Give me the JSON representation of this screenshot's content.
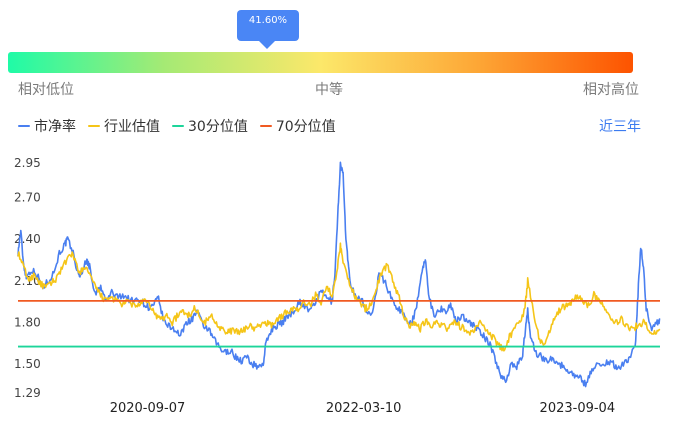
{
  "gauge": {
    "percentile": 0.416,
    "percentile_label": "41.60%",
    "labels": {
      "low": "相对低位",
      "mid": "中等",
      "high": "相对高位"
    }
  },
  "legend": [
    {
      "name": "市净率",
      "color": "#4a7ff0"
    },
    {
      "name": "行业估值",
      "color": "#f5c518"
    },
    {
      "name": "30分位值",
      "color": "#1dd59a"
    },
    {
      "name": "70分位值",
      "color": "#f05a22"
    }
  ],
  "range_button": "近三年",
  "chart_data": {
    "type": "line",
    "y_ticks": [
      "2.95",
      "2.70",
      "2.40",
      "2.10",
      "1.80",
      "1.50",
      "1.29"
    ],
    "ylim": [
      1.29,
      2.95
    ],
    "x_ticks": [
      "2020-09-07",
      "2022-03-10",
      "2023-09-04"
    ],
    "xlim": [
      "2019-10-14",
      "2024-04-01"
    ],
    "series": [
      {
        "name": "市净率",
        "color": "#4a7ff0",
        "points": [
          [
            "2019-10-14",
            2.3
          ],
          [
            "2019-10-21",
            2.46
          ],
          [
            "2019-10-28",
            2.22
          ],
          [
            "2019-11-04",
            2.13
          ],
          [
            "2019-11-18",
            2.18
          ],
          [
            "2019-12-02",
            2.14
          ],
          [
            "2019-12-16",
            2.05
          ],
          [
            "2019-12-30",
            2.1
          ],
          [
            "2020-01-13",
            2.16
          ],
          [
            "2020-01-27",
            2.3
          ],
          [
            "2020-02-10",
            2.36
          ],
          [
            "2020-02-17",
            2.4
          ],
          [
            "2020-03-02",
            2.3
          ],
          [
            "2020-03-16",
            2.13
          ],
          [
            "2020-03-23",
            2.16
          ],
          [
            "2020-04-06",
            2.25
          ],
          [
            "2020-04-13",
            2.2
          ],
          [
            "2020-04-27",
            2.0
          ],
          [
            "2020-05-11",
            2.05
          ],
          [
            "2020-05-25",
            1.95
          ],
          [
            "2020-06-08",
            2.02
          ],
          [
            "2020-06-22",
            1.98
          ],
          [
            "2020-07-06",
            2.0
          ],
          [
            "2020-07-20",
            1.97
          ],
          [
            "2020-08-03",
            1.95
          ],
          [
            "2020-08-17",
            1.97
          ],
          [
            "2020-08-31",
            1.93
          ],
          [
            "2020-09-14",
            1.9
          ],
          [
            "2020-09-28",
            1.95
          ],
          [
            "2020-10-05",
            1.97
          ],
          [
            "2020-10-19",
            1.8
          ],
          [
            "2020-11-02",
            1.77
          ],
          [
            "2020-11-16",
            1.75
          ],
          [
            "2020-11-30",
            1.7
          ],
          [
            "2020-12-14",
            1.8
          ],
          [
            "2020-12-28",
            1.82
          ],
          [
            "2021-01-11",
            1.88
          ],
          [
            "2021-01-25",
            1.78
          ],
          [
            "2021-02-08",
            1.75
          ],
          [
            "2021-02-22",
            1.68
          ],
          [
            "2021-03-08",
            1.62
          ],
          [
            "2021-03-22",
            1.58
          ],
          [
            "2021-04-05",
            1.6
          ],
          [
            "2021-04-19",
            1.55
          ],
          [
            "2021-05-03",
            1.52
          ],
          [
            "2021-05-17",
            1.55
          ],
          [
            "2021-05-31",
            1.5
          ],
          [
            "2021-06-14",
            1.48
          ],
          [
            "2021-06-28",
            1.5
          ],
          [
            "2021-07-05",
            1.65
          ],
          [
            "2021-07-19",
            1.75
          ],
          [
            "2021-08-02",
            1.78
          ],
          [
            "2021-08-16",
            1.8
          ],
          [
            "2021-08-30",
            1.85
          ],
          [
            "2021-09-13",
            1.88
          ],
          [
            "2021-09-27",
            1.95
          ],
          [
            "2021-10-11",
            1.92
          ],
          [
            "2021-10-25",
            1.88
          ],
          [
            "2021-11-08",
            1.95
          ],
          [
            "2021-11-22",
            2.02
          ],
          [
            "2021-12-06",
            1.98
          ],
          [
            "2021-12-20",
            1.95
          ],
          [
            "2021-12-27",
            2.15
          ],
          [
            "2022-01-03",
            2.55
          ],
          [
            "2022-01-10",
            2.95
          ],
          [
            "2022-01-17",
            2.86
          ],
          [
            "2022-01-24",
            2.4
          ],
          [
            "2022-01-31",
            2.18
          ],
          [
            "2022-02-07",
            2.05
          ],
          [
            "2022-02-21",
            1.98
          ],
          [
            "2022-03-07",
            1.95
          ],
          [
            "2022-03-21",
            1.85
          ],
          [
            "2022-04-04",
            1.9
          ],
          [
            "2022-04-18",
            2.15
          ],
          [
            "2022-05-02",
            2.1
          ],
          [
            "2022-05-16",
            2.0
          ],
          [
            "2022-05-30",
            1.92
          ],
          [
            "2022-06-13",
            1.88
          ],
          [
            "2022-06-27",
            1.82
          ],
          [
            "2022-07-11",
            1.8
          ],
          [
            "2022-07-25",
            1.95
          ],
          [
            "2022-08-08",
            2.2
          ],
          [
            "2022-08-15",
            2.25
          ],
          [
            "2022-08-22",
            2.0
          ],
          [
            "2022-09-05",
            1.85
          ],
          [
            "2022-09-19",
            1.9
          ],
          [
            "2022-10-03",
            1.88
          ],
          [
            "2022-10-17",
            1.92
          ],
          [
            "2022-10-31",
            1.8
          ],
          [
            "2022-11-14",
            1.85
          ],
          [
            "2022-11-28",
            1.82
          ],
          [
            "2022-12-12",
            1.78
          ],
          [
            "2022-12-26",
            1.75
          ],
          [
            "2023-01-09",
            1.7
          ],
          [
            "2023-01-23",
            1.65
          ],
          [
            "2023-02-06",
            1.55
          ],
          [
            "2023-02-20",
            1.42
          ],
          [
            "2023-03-06",
            1.38
          ],
          [
            "2023-03-20",
            1.5
          ],
          [
            "2023-04-03",
            1.48
          ],
          [
            "2023-04-17",
            1.55
          ],
          [
            "2023-04-24",
            1.72
          ],
          [
            "2023-05-01",
            1.88
          ],
          [
            "2023-05-08",
            1.7
          ],
          [
            "2023-05-22",
            1.58
          ],
          [
            "2023-06-05",
            1.55
          ],
          [
            "2023-06-19",
            1.52
          ],
          [
            "2023-07-03",
            1.55
          ],
          [
            "2023-07-17",
            1.5
          ],
          [
            "2023-07-31",
            1.48
          ],
          [
            "2023-08-14",
            1.45
          ],
          [
            "2023-08-28",
            1.42
          ],
          [
            "2023-09-11",
            1.4
          ],
          [
            "2023-09-25",
            1.35
          ],
          [
            "2023-10-09",
            1.45
          ],
          [
            "2023-10-23",
            1.5
          ],
          [
            "2023-11-06",
            1.48
          ],
          [
            "2023-11-20",
            1.52
          ],
          [
            "2023-12-04",
            1.5
          ],
          [
            "2023-12-18",
            1.47
          ],
          [
            "2024-01-01",
            1.5
          ],
          [
            "2024-01-15",
            1.55
          ],
          [
            "2024-01-29",
            1.62
          ],
          [
            "2024-02-05",
            2.0
          ],
          [
            "2024-02-12",
            2.35
          ],
          [
            "2024-02-19",
            2.2
          ],
          [
            "2024-02-26",
            1.9
          ],
          [
            "2024-03-11",
            1.75
          ],
          [
            "2024-03-25",
            1.8
          ],
          [
            "2024-04-01",
            1.82
          ]
        ]
      },
      {
        "name": "行业估值",
        "color": "#f5c518",
        "points": [
          [
            "2019-10-14",
            2.3
          ],
          [
            "2019-10-28",
            2.2
          ],
          [
            "2019-11-11",
            2.1
          ],
          [
            "2019-11-25",
            2.15
          ],
          [
            "2019-12-09",
            2.08
          ],
          [
            "2019-12-23",
            2.05
          ],
          [
            "2020-01-06",
            2.08
          ],
          [
            "2020-01-20",
            2.12
          ],
          [
            "2020-02-03",
            2.2
          ],
          [
            "2020-02-17",
            2.25
          ],
          [
            "2020-03-02",
            2.3
          ],
          [
            "2020-03-16",
            2.15
          ],
          [
            "2020-03-30",
            2.2
          ],
          [
            "2020-04-13",
            2.15
          ],
          [
            "2020-04-27",
            2.05
          ],
          [
            "2020-05-11",
            2.0
          ],
          [
            "2020-05-25",
            1.95
          ],
          [
            "2020-06-08",
            1.98
          ],
          [
            "2020-06-22",
            1.95
          ],
          [
            "2020-07-06",
            1.93
          ],
          [
            "2020-07-20",
            1.95
          ],
          [
            "2020-08-03",
            1.92
          ],
          [
            "2020-08-17",
            1.93
          ],
          [
            "2020-08-31",
            1.95
          ],
          [
            "2020-09-14",
            1.92
          ],
          [
            "2020-09-28",
            1.85
          ],
          [
            "2020-10-12",
            1.82
          ],
          [
            "2020-10-26",
            1.85
          ],
          [
            "2020-11-09",
            1.8
          ],
          [
            "2020-11-23",
            1.85
          ],
          [
            "2020-12-07",
            1.88
          ],
          [
            "2020-12-21",
            1.85
          ],
          [
            "2021-01-04",
            1.9
          ],
          [
            "2021-01-18",
            1.85
          ],
          [
            "2021-02-01",
            1.8
          ],
          [
            "2021-02-15",
            1.85
          ],
          [
            "2021-03-01",
            1.8
          ],
          [
            "2021-03-15",
            1.75
          ],
          [
            "2021-03-29",
            1.72
          ],
          [
            "2021-04-12",
            1.75
          ],
          [
            "2021-04-26",
            1.72
          ],
          [
            "2021-05-10",
            1.75
          ],
          [
            "2021-05-24",
            1.78
          ],
          [
            "2021-06-07",
            1.75
          ],
          [
            "2021-06-21",
            1.78
          ],
          [
            "2021-07-05",
            1.8
          ],
          [
            "2021-07-19",
            1.78
          ],
          [
            "2021-08-02",
            1.82
          ],
          [
            "2021-08-16",
            1.85
          ],
          [
            "2021-08-30",
            1.88
          ],
          [
            "2021-09-13",
            1.9
          ],
          [
            "2021-09-27",
            1.88
          ],
          [
            "2021-10-11",
            1.95
          ],
          [
            "2021-10-25",
            1.92
          ],
          [
            "2021-11-08",
            2.0
          ],
          [
            "2021-11-22",
            1.95
          ],
          [
            "2021-12-06",
            2.05
          ],
          [
            "2021-12-20",
            2.0
          ],
          [
            "2022-01-03",
            2.2
          ],
          [
            "2022-01-10",
            2.35
          ],
          [
            "2022-01-17",
            2.25
          ],
          [
            "2022-01-31",
            2.1
          ],
          [
            "2022-02-14",
            2.0
          ],
          [
            "2022-02-28",
            1.95
          ],
          [
            "2022-03-14",
            1.9
          ],
          [
            "2022-03-28",
            1.92
          ],
          [
            "2022-04-11",
            2.05
          ],
          [
            "2022-04-25",
            2.15
          ],
          [
            "2022-05-09",
            2.22
          ],
          [
            "2022-05-23",
            2.1
          ],
          [
            "2022-06-06",
            2.0
          ],
          [
            "2022-06-20",
            1.85
          ],
          [
            "2022-07-04",
            1.78
          ],
          [
            "2022-07-18",
            1.8
          ],
          [
            "2022-08-01",
            1.75
          ],
          [
            "2022-08-15",
            1.82
          ],
          [
            "2022-08-29",
            1.78
          ],
          [
            "2022-09-12",
            1.8
          ],
          [
            "2022-09-26",
            1.78
          ],
          [
            "2022-10-10",
            1.75
          ],
          [
            "2022-10-24",
            1.8
          ],
          [
            "2022-11-07",
            1.78
          ],
          [
            "2022-11-21",
            1.75
          ],
          [
            "2022-12-05",
            1.72
          ],
          [
            "2022-12-19",
            1.75
          ],
          [
            "2023-01-02",
            1.8
          ],
          [
            "2023-01-16",
            1.75
          ],
          [
            "2023-01-30",
            1.7
          ],
          [
            "2023-02-13",
            1.65
          ],
          [
            "2023-02-27",
            1.6
          ],
          [
            "2023-03-13",
            1.68
          ],
          [
            "2023-03-27",
            1.75
          ],
          [
            "2023-04-10",
            1.8
          ],
          [
            "2023-04-24",
            1.9
          ],
          [
            "2023-05-01",
            2.1
          ],
          [
            "2023-05-15",
            1.88
          ],
          [
            "2023-05-29",
            1.7
          ],
          [
            "2023-06-12",
            1.62
          ],
          [
            "2023-06-26",
            1.75
          ],
          [
            "2023-07-10",
            1.85
          ],
          [
            "2023-07-24",
            1.9
          ],
          [
            "2023-08-07",
            1.92
          ],
          [
            "2023-08-21",
            1.95
          ],
          [
            "2023-09-04",
            2.0
          ],
          [
            "2023-09-18",
            1.95
          ],
          [
            "2023-10-02",
            1.92
          ],
          [
            "2023-10-16",
            2.0
          ],
          [
            "2023-10-30",
            1.95
          ],
          [
            "2023-11-13",
            1.9
          ],
          [
            "2023-11-27",
            1.85
          ],
          [
            "2023-12-11",
            1.8
          ],
          [
            "2023-12-25",
            1.82
          ],
          [
            "2024-01-08",
            1.78
          ],
          [
            "2024-01-22",
            1.75
          ],
          [
            "2024-02-05",
            1.78
          ],
          [
            "2024-02-19",
            1.8
          ],
          [
            "2024-03-04",
            1.75
          ],
          [
            "2024-03-18",
            1.72
          ],
          [
            "2024-04-01",
            1.75
          ]
        ]
      }
    ],
    "reference_lines": [
      {
        "name": "30分位值",
        "value": 1.625,
        "color": "#1dd59a"
      },
      {
        "name": "70分位值",
        "value": 1.955,
        "color": "#f05a22"
      }
    ],
    "grid": false,
    "legend_position": "top-left"
  }
}
